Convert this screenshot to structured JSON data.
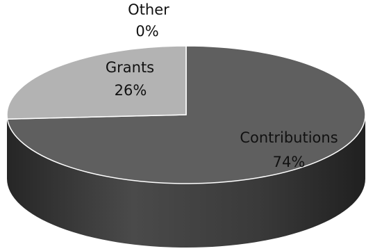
{
  "chart_data": {
    "type": "pie",
    "style": "3d",
    "title": "",
    "legend": "none",
    "colors": {
      "contributions_top": "#5f5f5f",
      "contributions_side": "#3e3e3e",
      "grants_top": "#b3b3b3",
      "grants_side": "#8c8c8c",
      "other_top": "#7a7a7a",
      "edge": "#ffffff"
    },
    "slices": [
      {
        "name": "Contributions",
        "value": 74,
        "percent_label": "74%",
        "top_color": "#5f5f5f",
        "side_color": "#3e3e3e"
      },
      {
        "name": "Grants",
        "value": 26,
        "percent_label": "26%",
        "top_color": "#b3b3b3",
        "side_color": "#8c8c8c"
      },
      {
        "name": "Other",
        "value": 0,
        "percent_label": "0%",
        "top_color": "#7a7a7a",
        "side_color": "#555555"
      }
    ]
  }
}
